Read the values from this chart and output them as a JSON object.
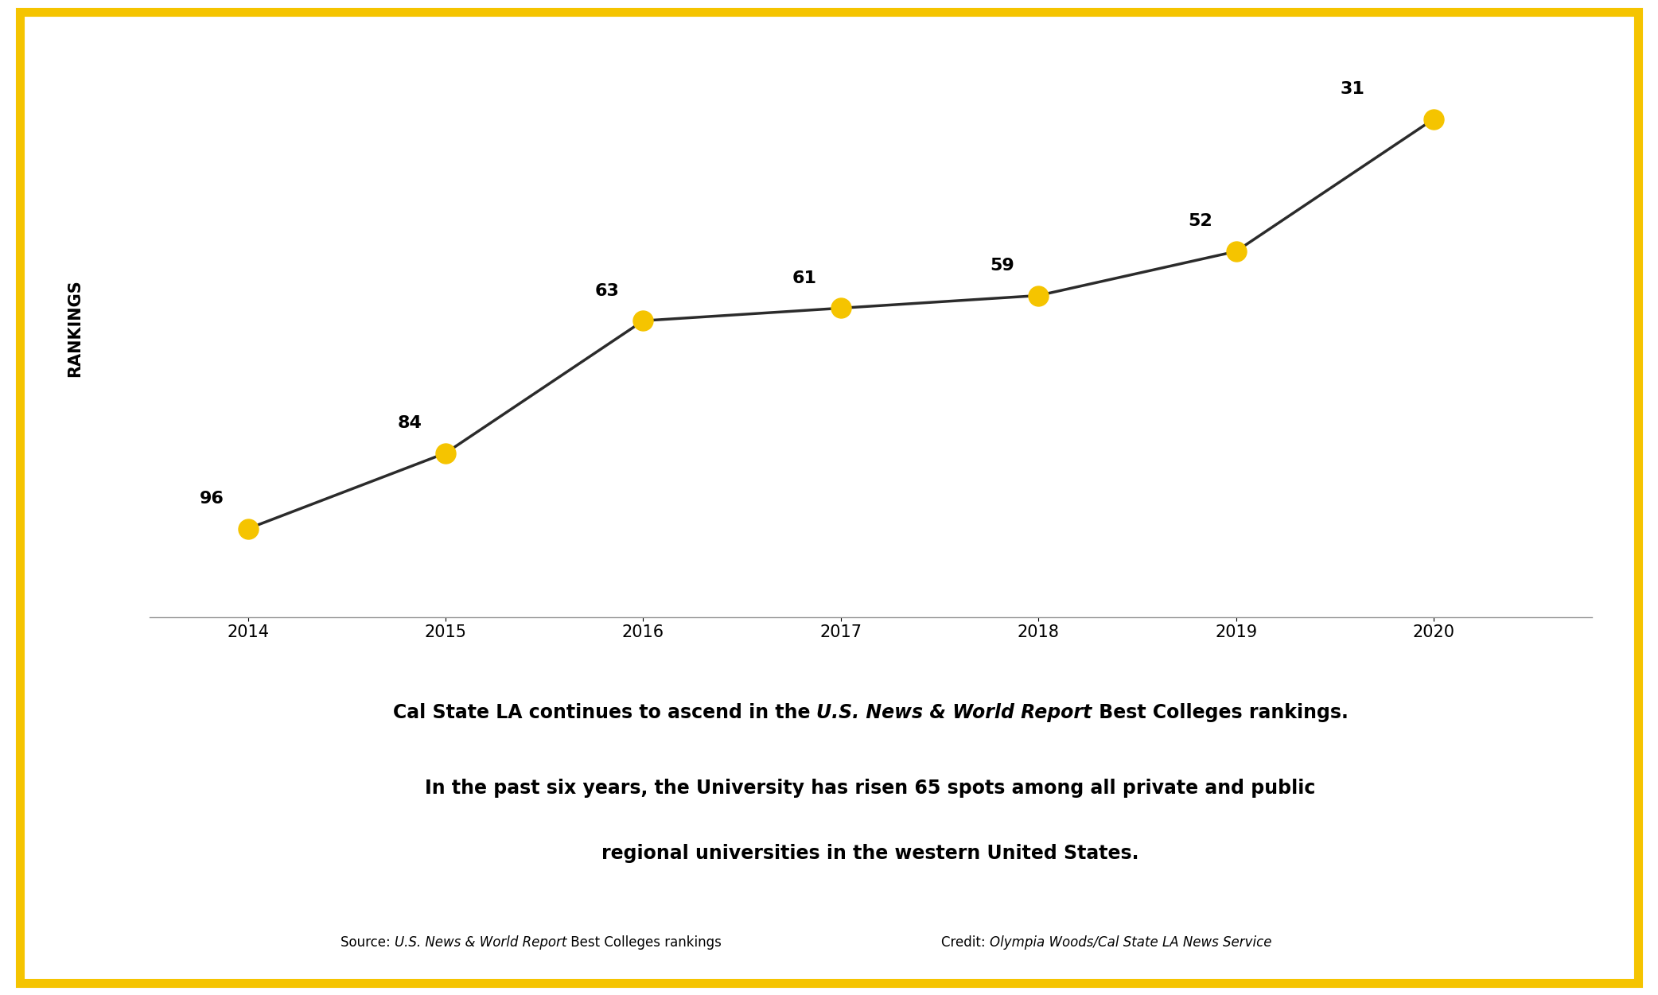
{
  "years": [
    2014,
    2015,
    2016,
    2017,
    2018,
    2019,
    2020
  ],
  "rankings": [
    96,
    84,
    63,
    61,
    59,
    52,
    31
  ],
  "line_color": "#2b2b2b",
  "marker_color": "#F5C400",
  "marker_size": 18,
  "line_width": 2.5,
  "ylabel": "RANKINGS",
  "ylim_min": 20,
  "ylim_max": 110,
  "background_color": "#ffffff",
  "border_color": "#F5C400",
  "border_linewidth": 8,
  "grid_color": "#cccccc",
  "annotation_fontsize": 16,
  "axis_tick_fontsize": 15,
  "ylabel_fontsize": 14,
  "caption_fontsize": 17,
  "source_fontsize": 12
}
